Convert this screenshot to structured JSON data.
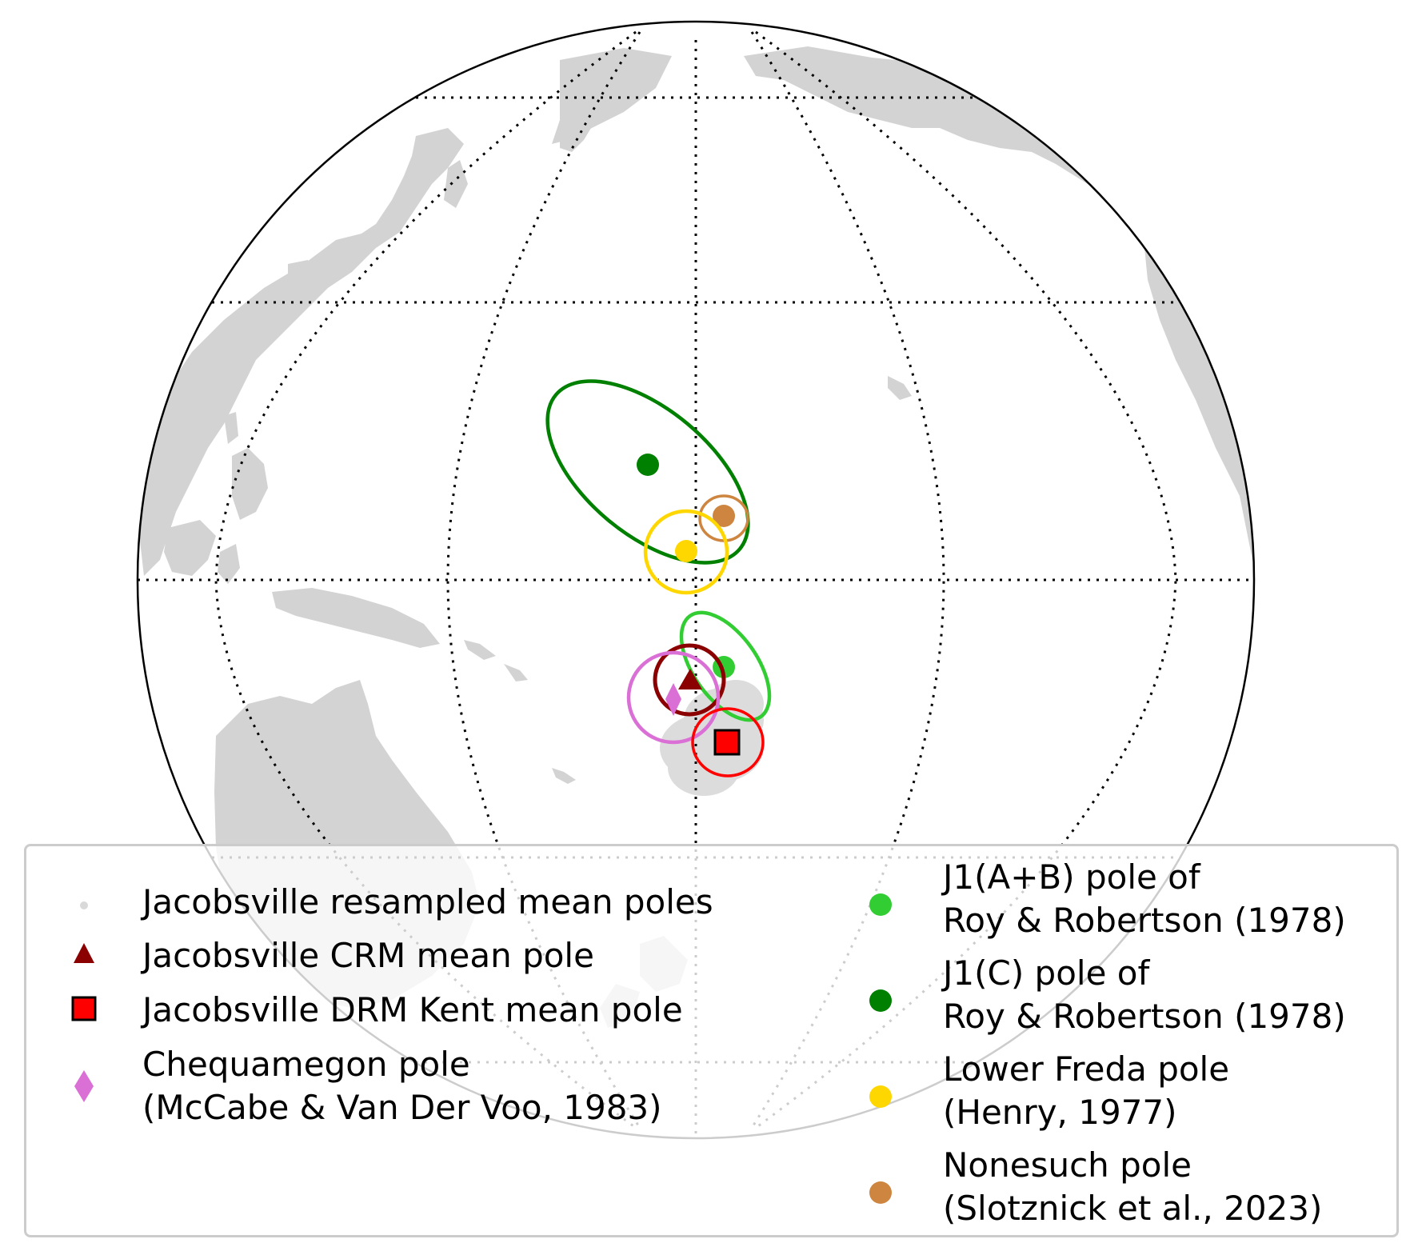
{
  "map": {
    "projection": "orthographic",
    "land_color": "#d3d3d3",
    "graticule_style": "dotted"
  },
  "legend": {
    "left_column": [
      {
        "label_lines": [
          "Jacobsville resampled mean poles"
        ],
        "marker": "small-dot",
        "color": "#d9d9d9"
      },
      {
        "label_lines": [
          "Jacobsville CRM mean pole"
        ],
        "marker": "triangle",
        "color": "#8b0000"
      },
      {
        "label_lines": [
          "Jacobsville DRM Kent mean pole"
        ],
        "marker": "square",
        "color": "#ff0000"
      },
      {
        "label_lines": [
          "Chequamegon pole",
          "(McCabe & Van Der Voo, 1983)"
        ],
        "marker": "diamond",
        "color": "#da70d6"
      }
    ],
    "right_column": [
      {
        "label_lines": [
          "J1(A+B) pole of",
          "Roy & Robertson (1978)"
        ],
        "marker": "circle",
        "color": "#32cd32"
      },
      {
        "label_lines": [
          "J1(C) pole of",
          "Roy & Robertson (1978)"
        ],
        "marker": "circle",
        "color": "#008000"
      },
      {
        "label_lines": [
          "Lower Freda pole",
          "(Henry, 1977)"
        ],
        "marker": "circle",
        "color": "#ffd700"
      },
      {
        "label_lines": [
          "Nonesuch pole",
          "(Slotznick et al., 2023)"
        ],
        "marker": "circle",
        "color": "#cd853f"
      }
    ]
  }
}
